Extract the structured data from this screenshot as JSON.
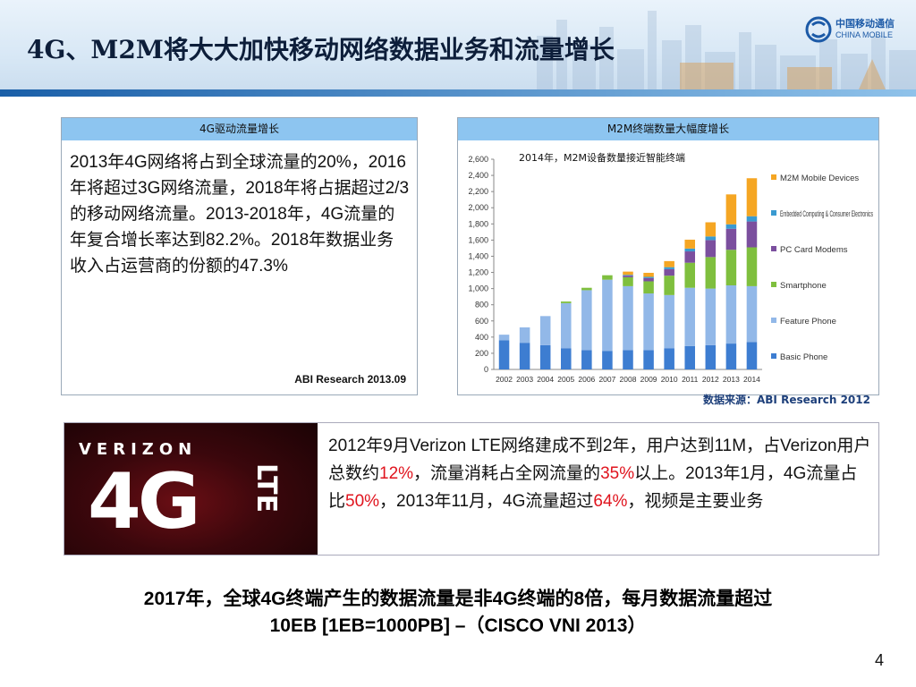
{
  "header": {
    "title": "4G、M2M将大大加快移动网络数据业务和流量增长",
    "logo_cn": "中国移动通信",
    "logo_en": "CHINA MOBILE"
  },
  "panel_4g": {
    "title": "4G驱动流量增长",
    "body": "2013年4G网络将占到全球流量的20%，2016年将超过3G网络流量，2018年将占据超过2/3的移动网络流量。2013-2018年，4G流量的年复合增长率达到82.2%。2018年数据业务收入占运营商的份额的47.3%",
    "source": "ABI Research 2013.09"
  },
  "panel_m2m": {
    "title": "M2M终端数量大幅度增长",
    "source": "数据来源：ABI Research 2012"
  },
  "chart_data": {
    "type": "bar",
    "stacked": true,
    "annotation": "2014年，M2M设备数量接近智能终端",
    "categories": [
      "2002",
      "2003",
      "2004",
      "2005",
      "2006",
      "2007",
      "2008",
      "2009",
      "2010",
      "2011",
      "2012",
      "2013",
      "2014"
    ],
    "ylim": [
      0,
      2600
    ],
    "yticks": [
      0,
      200,
      400,
      600,
      800,
      1000,
      1200,
      1400,
      1600,
      1800,
      2000,
      2200,
      2400,
      2600
    ],
    "legend_position": "right",
    "series": [
      {
        "name": "Basic Phone",
        "color": "#3d7dd1",
        "values": [
          360,
          330,
          300,
          260,
          240,
          230,
          240,
          240,
          260,
          290,
          300,
          320,
          340
        ]
      },
      {
        "name": "Feature Phone",
        "color": "#92b8e8",
        "values": [
          70,
          190,
          360,
          560,
          740,
          880,
          790,
          700,
          660,
          720,
          700,
          720,
          690
        ]
      },
      {
        "name": "Smartphone",
        "color": "#7fbf3e",
        "values": [
          0,
          0,
          0,
          20,
          30,
          55,
          110,
          150,
          240,
          310,
          390,
          440,
          480
        ]
      },
      {
        "name": "PC Card Modems",
        "color": "#7b4f9e",
        "values": [
          0,
          0,
          0,
          0,
          0,
          0,
          20,
          40,
          80,
          140,
          210,
          260,
          320
        ]
      },
      {
        "name": "Embedded Computing & Consumer Electronics",
        "color": "#3a9ad0",
        "values": [
          0,
          0,
          0,
          0,
          0,
          0,
          10,
          15,
          25,
          35,
          45,
          55,
          65
        ]
      },
      {
        "name": "M2M Mobile Devices",
        "color": "#f5a623",
        "values": [
          0,
          0,
          0,
          0,
          0,
          0,
          40,
          50,
          75,
          110,
          175,
          370,
          470
        ]
      }
    ]
  },
  "verizon": {
    "brand": "VERIZON",
    "big": "4G",
    "lte": "LTE",
    "text_parts": [
      {
        "t": "2012年9月Verizon LTE网络建成不到2年，用户达到11M，占Verizon用户总数约",
        "red": false
      },
      {
        "t": "12%",
        "red": true
      },
      {
        "t": "，流量消耗占全网流量的",
        "red": false
      },
      {
        "t": "35%",
        "red": true
      },
      {
        "t": "以上。2013年1月，4G流量占比",
        "red": false
      },
      {
        "t": "50%",
        "red": true
      },
      {
        "t": "，2013年11月，4G流量超过",
        "red": false
      },
      {
        "t": "64%",
        "red": true
      },
      {
        "t": "，视频是主要业务",
        "red": false
      }
    ]
  },
  "bottom": {
    "line1": "2017年，全球4G终端产生的数据流量是非4G终端的8倍，每月数据流量超过",
    "line2": "10EB [1EB=1000PB] –（CISCO VNI 2013）"
  },
  "page_number": "4",
  "colors": {
    "title_bar": "#8dc5f0",
    "accent": "#1c5aa7",
    "highlight": "#e0141e"
  }
}
